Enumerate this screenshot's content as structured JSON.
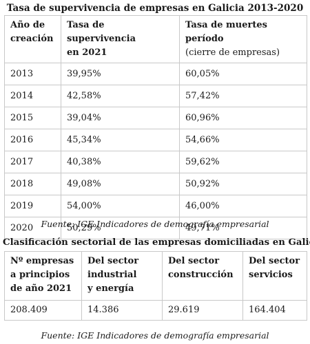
{
  "table1": {
    "title": "Tasa de supervivencia de empresas en Galicia 2013-2020",
    "headers": {
      "col1_line1": "Año de",
      "col1_line2": "creación",
      "col2_line1": "Tasa de supervivencia",
      "col2_line2": "en 2021",
      "col3_line1": "Tasa de muertes período",
      "col3_line2": "(cierre de empresas)"
    },
    "rows": [
      {
        "year": "2013",
        "survival": "39,95%",
        "deaths": "60,05%"
      },
      {
        "year": "2014",
        "survival": "42,58%",
        "deaths": "57,42%"
      },
      {
        "year": "2015",
        "survival": "39,04%",
        "deaths": "60,96%"
      },
      {
        "year": "2016",
        "survival": "45,34%",
        "deaths": "54,66%"
      },
      {
        "year": "2017",
        "survival": "40,38%",
        "deaths": "59,62%"
      },
      {
        "year": "2018",
        "survival": "49,08%",
        "deaths": "50,92%"
      },
      {
        "year": "2019",
        "survival": "54,00%",
        "deaths": "46,00%"
      },
      {
        "year": "2020",
        "survival": "50,29%",
        "deaths": "49,71%"
      }
    ],
    "source": "Fuente: IGE Indicadores de demografía empresarial"
  },
  "table2": {
    "title": "Clasificación sectorial de las empresas domiciliadas en Galicia",
    "headers": {
      "col1_line1": "Nº empresas",
      "col1_line2": "a principios",
      "col1_line3": "de año 2021",
      "col2_line1": "Del sector",
      "col2_line2": "industrial",
      "col2_line3": "y energía",
      "col3_line1": "Del sector",
      "col3_line2": "construcción",
      "col4_line1": "Del sector",
      "col4_line2": "servicios"
    },
    "values": {
      "total": "208.409",
      "industrial": "14.386",
      "construccion": "29.619",
      "servicios": "164.404"
    },
    "source": "Fuente: IGE Indicadores de demografía empresarial"
  }
}
